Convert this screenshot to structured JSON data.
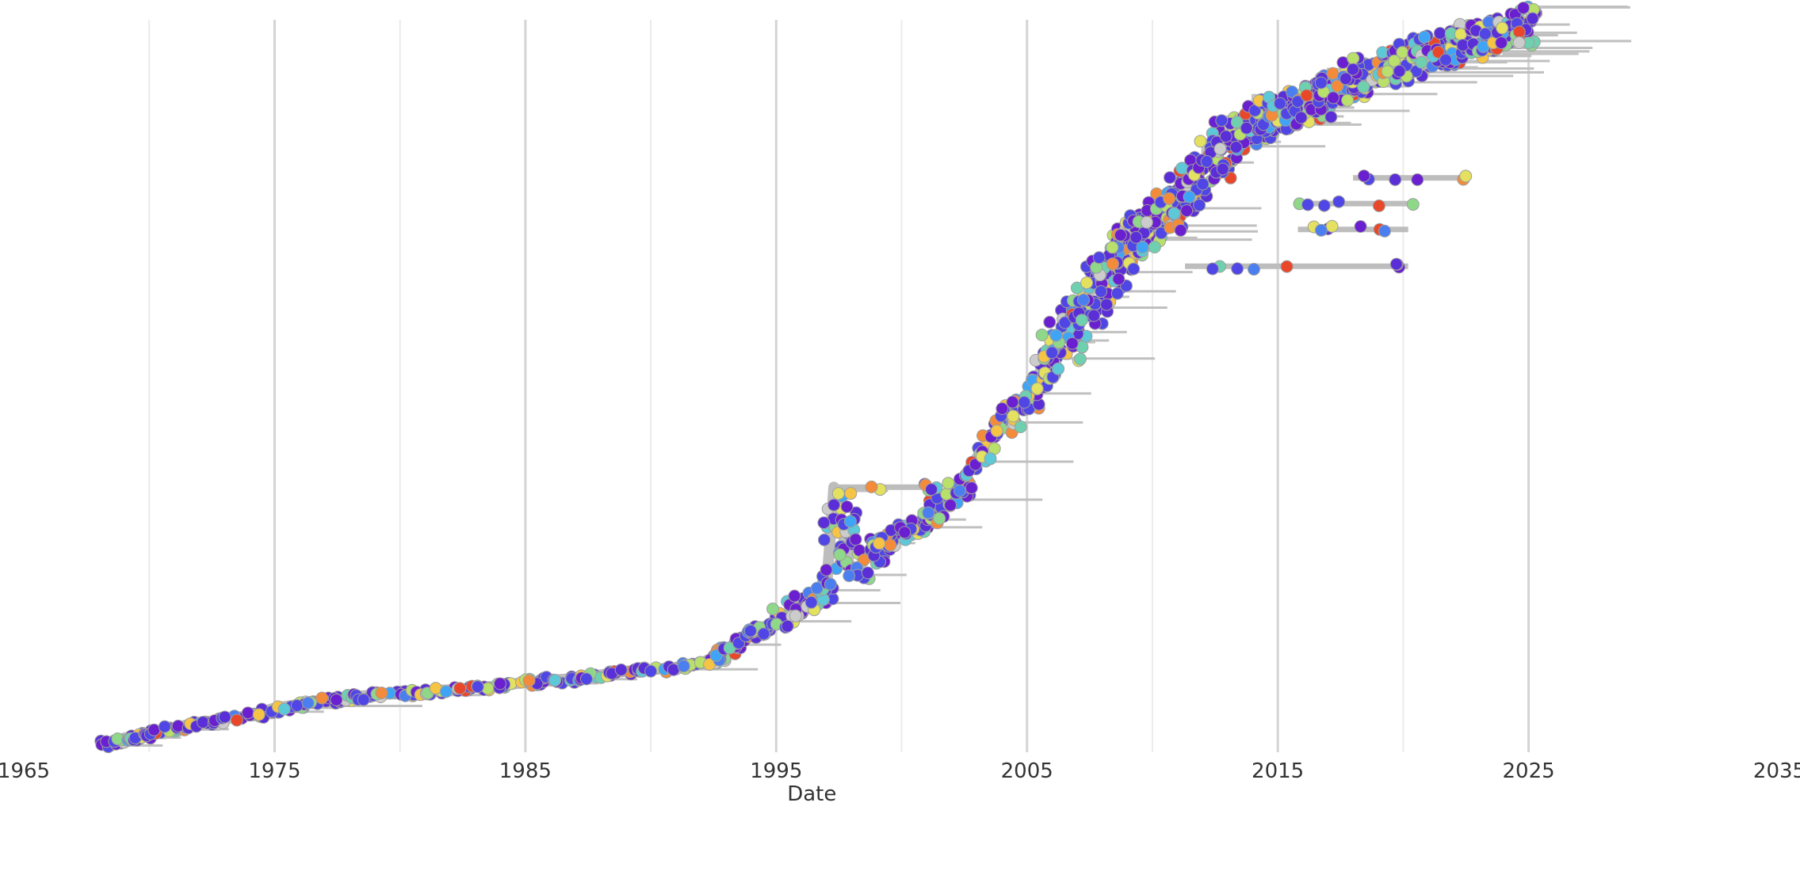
{
  "chart_data": {
    "type": "scatter",
    "subtype": "time-tree",
    "title": "",
    "xlabel": "Date",
    "ylabel": "",
    "x_axis_type": "date",
    "xlim": [
      1965,
      2035
    ],
    "x_ticks": [
      1965,
      1975,
      1985,
      1995,
      2005,
      2015,
      2025,
      2035
    ],
    "x_tick_labels": [
      "1965",
      "1975",
      "1985",
      "1995",
      "2005",
      "2015",
      "2025",
      "2035"
    ],
    "grid": {
      "vertical_major": [
        1975,
        1985,
        1995,
        2005,
        2015,
        2025
      ],
      "vertical_minor": [
        1970,
        1980,
        1990,
        2000,
        2010,
        2020
      ]
    },
    "backbone": {
      "description": "grey tree branches (trunk) running from earliest to latest samples",
      "color": "#bdbdbd"
    },
    "tip_colors": [
      "#5a2fd8",
      "#6a1fd0",
      "#4f46e5",
      "#4b7ff0",
      "#3fa4f5",
      "#5cc8d8",
      "#6fd0b0",
      "#8fd88a",
      "#b9e06a",
      "#e4e060",
      "#f6c445",
      "#f38b3a",
      "#e9472a",
      "#cccccc"
    ],
    "series": [
      {
        "values": [
          [
            1968.2,
            0.01
          ],
          [
            1968.6,
            0.015
          ],
          [
            1969.1,
            0.02
          ],
          [
            1969.8,
            0.025
          ],
          [
            1970.5,
            0.03
          ],
          [
            1971.2,
            0.035
          ],
          [
            1972.0,
            0.04
          ],
          [
            1973.0,
            0.045
          ],
          [
            1974.0,
            0.05
          ],
          [
            1975.0,
            0.06
          ],
          [
            1976.0,
            0.065
          ],
          [
            1977.0,
            0.07
          ],
          [
            1978.0,
            0.075
          ],
          [
            1979.0,
            0.078
          ],
          [
            1980.0,
            0.08
          ],
          [
            1981.0,
            0.082
          ],
          [
            1982.0,
            0.085
          ],
          [
            1983.0,
            0.088
          ],
          [
            1984.0,
            0.09
          ],
          [
            1985.0,
            0.095
          ],
          [
            1986.0,
            0.098
          ],
          [
            1987.0,
            0.1
          ],
          [
            1988.0,
            0.105
          ],
          [
            1989.0,
            0.11
          ],
          [
            1990.0,
            0.112
          ],
          [
            1991.0,
            0.115
          ],
          [
            1992.0,
            0.12
          ],
          [
            1993.0,
            0.14
          ],
          [
            1994.0,
            0.16
          ],
          [
            1995.0,
            0.18
          ],
          [
            1996.0,
            0.2
          ],
          [
            1997.0,
            0.22
          ],
          [
            1997.3,
            0.36
          ],
          [
            1998.0,
            0.24
          ],
          [
            1999.0,
            0.28
          ],
          [
            2000.0,
            0.3
          ],
          [
            2001.0,
            0.32
          ],
          [
            2002.0,
            0.35
          ],
          [
            2003.0,
            0.4
          ],
          [
            2004.0,
            0.45
          ],
          [
            2005.0,
            0.48
          ],
          [
            2006.0,
            0.55
          ],
          [
            2007.0,
            0.6
          ],
          [
            2008.0,
            0.65
          ],
          [
            2009.0,
            0.7
          ],
          [
            2010.0,
            0.72
          ],
          [
            2011.0,
            0.76
          ],
          [
            2012.0,
            0.8
          ],
          [
            2013.0,
            0.84
          ],
          [
            2014.0,
            0.86
          ],
          [
            2015.0,
            0.87
          ],
          [
            2016.0,
            0.88
          ],
          [
            2017.0,
            0.9
          ],
          [
            2018.0,
            0.92
          ],
          [
            2019.0,
            0.93
          ],
          [
            2020.0,
            0.94
          ],
          [
            2021.0,
            0.95
          ],
          [
            2022.0,
            0.96
          ],
          [
            2023.0,
            0.97
          ],
          [
            2024.0,
            0.98
          ],
          [
            2025.0,
            0.99
          ]
        ]
      }
    ]
  }
}
